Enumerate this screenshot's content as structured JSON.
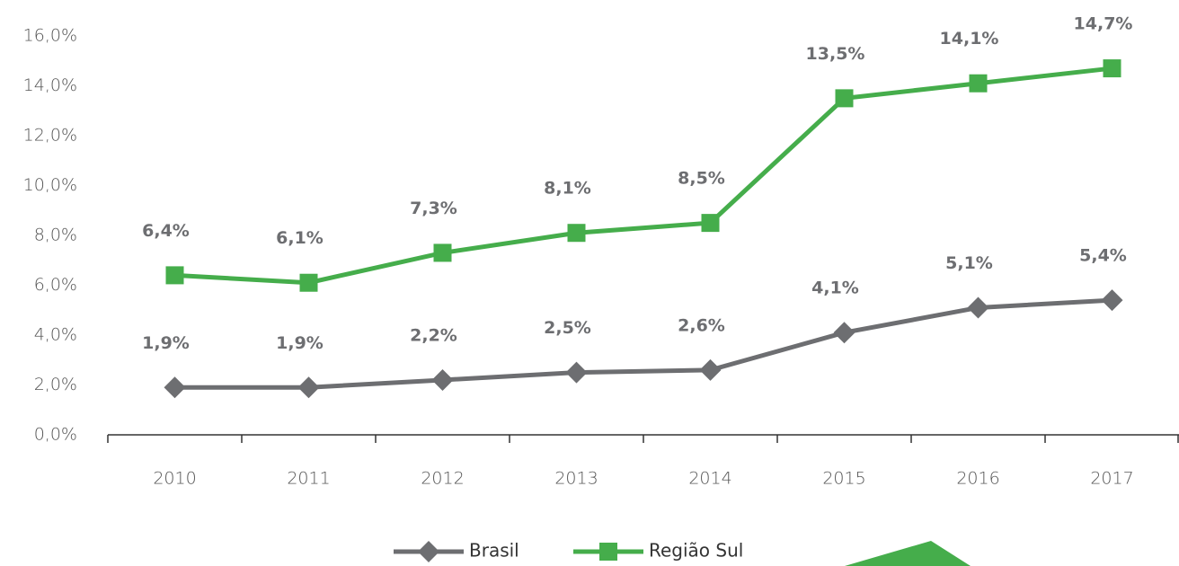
{
  "chart_data": {
    "type": "line",
    "categories": [
      "2010",
      "2011",
      "2012",
      "2013",
      "2014",
      "2015",
      "2016",
      "2017"
    ],
    "series": [
      {
        "name": "Brasil",
        "color": "#6d6e71",
        "marker": "diamond",
        "values": [
          1.9,
          1.9,
          2.2,
          2.5,
          2.6,
          4.1,
          5.1,
          5.4
        ],
        "value_labels": [
          "1,9%",
          "1,9%",
          "2,2%",
          "2,5%",
          "2,6%",
          "4,1%",
          "5,1%",
          "5,4%"
        ]
      },
      {
        "name": "Região Sul",
        "color": "#45ad4b",
        "marker": "square",
        "values": [
          6.4,
          6.1,
          7.3,
          8.1,
          8.5,
          13.5,
          14.1,
          14.7
        ],
        "value_labels": [
          "6,4%",
          "6,1%",
          "7,3%",
          "8,1%",
          "8,5%",
          "13,5%",
          "14,1%",
          "14,7%"
        ]
      }
    ],
    "ylim": [
      0,
      16
    ],
    "yticks": [
      {
        "value": 0,
        "label": "0,0%"
      },
      {
        "value": 2,
        "label": "2,0%"
      },
      {
        "value": 4,
        "label": "4,0%"
      },
      {
        "value": 6,
        "label": "6,0%"
      },
      {
        "value": 8,
        "label": "8,0%"
      },
      {
        "value": 10,
        "label": "10,0%"
      },
      {
        "value": 12,
        "label": "12,0%"
      },
      {
        "value": 14,
        "label": "14,0%"
      },
      {
        "value": 16,
        "label": "16,0%"
      }
    ],
    "legend": "bottom",
    "grid": false
  }
}
